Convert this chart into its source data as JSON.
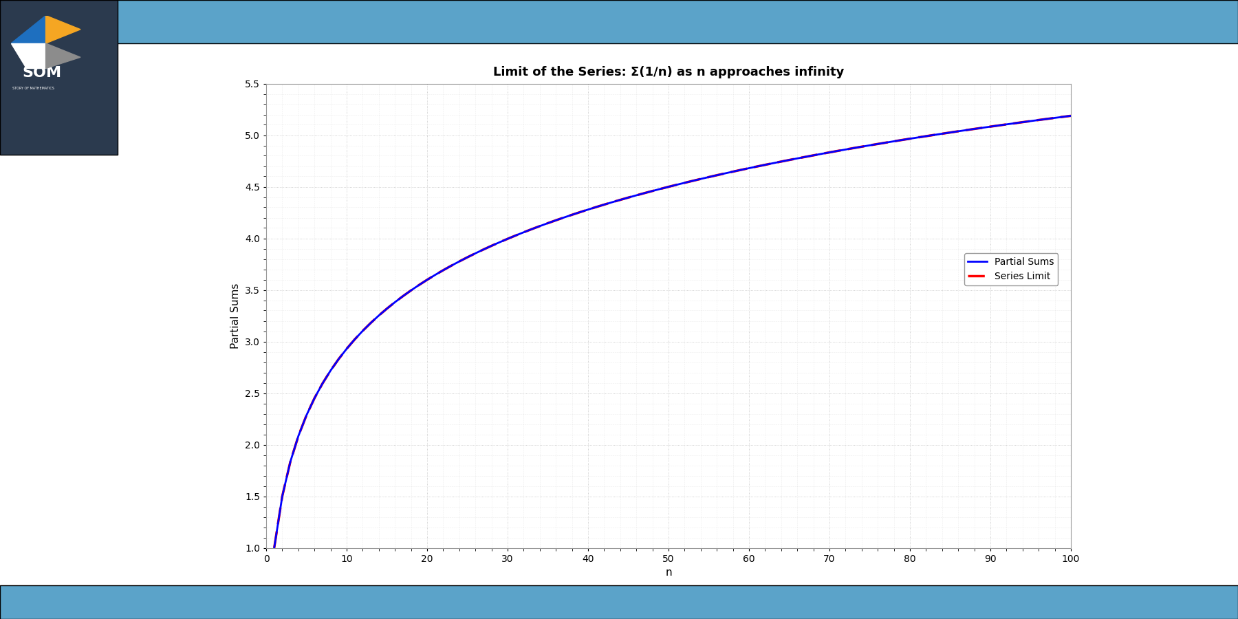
{
  "title": "Limit of the Series: Σ(1/n) as n approaches infinity",
  "xlabel": "n",
  "ylabel": "Partial Sums",
  "xlim": [
    0,
    100
  ],
  "ylim": [
    1.0,
    5.5
  ],
  "yticks": [
    1.0,
    1.5,
    2.0,
    2.5,
    3.0,
    3.5,
    4.0,
    4.5,
    5.0,
    5.5
  ],
  "xticks": [
    0,
    10,
    20,
    30,
    40,
    50,
    60,
    70,
    80,
    90,
    100
  ],
  "n_max": 100,
  "partial_sum_color": "#0000FF",
  "series_limit_color": "#FF0000",
  "partial_sum_linewidth": 2.0,
  "series_limit_linewidth": 2.5,
  "plot_bg_color": "#FFFFFF",
  "fig_bg_color": "#FFFFFF",
  "grid_color": "#BBBBBB",
  "title_fontsize": 13,
  "axis_label_fontsize": 11,
  "tick_fontsize": 10,
  "legend_labels": [
    "Partial Sums",
    "Series Limit"
  ],
  "header_color": "#2B3A4E",
  "top_bar_color": "#5BA3C9",
  "bottom_bar_color": "#5BA3C9",
  "fig_width": 18.0,
  "fig_height": 9.0
}
